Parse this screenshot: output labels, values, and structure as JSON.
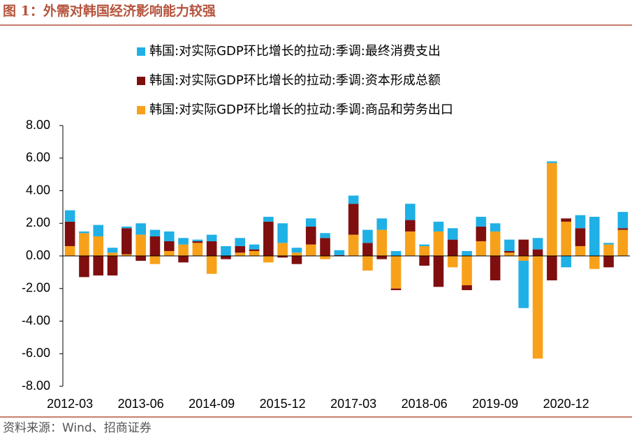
{
  "chart_data": {
    "type": "bar",
    "stacked": true,
    "title": "图 1：外需对韩国经济影响能力较强",
    "source": "资料来源：Wind、招商证券",
    "categories": [
      "2012-03",
      null,
      null,
      null,
      null,
      "2013-06",
      null,
      null,
      null,
      null,
      "2014-09",
      null,
      null,
      null,
      null,
      "2015-12",
      null,
      null,
      null,
      null,
      "2017-03",
      null,
      null,
      null,
      null,
      "2018-06",
      null,
      null,
      null,
      null,
      "2019-09",
      null,
      null,
      null,
      null,
      "2020-12",
      null,
      null,
      null,
      null
    ],
    "series": [
      {
        "name": "韩国:对实际GDP环比增长的拉动:季调:最终消费支出",
        "color": "#1fb0e6",
        "values": [
          0.7,
          0.1,
          0.7,
          0.3,
          0.1,
          0.7,
          0.4,
          0.6,
          0.4,
          0.1,
          0.4,
          0.6,
          0.5,
          0.3,
          0.3,
          1.2,
          0.3,
          0.5,
          0.3,
          0.3,
          0.5,
          0.8,
          0.7,
          0.3,
          1.0,
          0.1,
          0.6,
          0.7,
          0.3,
          0.6,
          0.5,
          0.7,
          -2.9,
          0.7,
          0.1,
          -0.7,
          0.8,
          2.4,
          0.1,
          1.0
        ]
      },
      {
        "name": "韩国:对实际GDP环比增长的拉动:季调:资本形成总额",
        "color": "#7f0f0f",
        "values": [
          1.5,
          -1.3,
          -1.2,
          -1.2,
          1.6,
          -0.3,
          1.2,
          0.6,
          -0.4,
          0.1,
          0.9,
          -0.2,
          0.4,
          0.1,
          2.1,
          -0.1,
          -0.5,
          1.1,
          1.1,
          0.05,
          1.9,
          0.8,
          -0.2,
          -0.1,
          0.7,
          -0.6,
          -1.9,
          1.0,
          -0.3,
          0.9,
          -1.5,
          0.1,
          1.0,
          0.4,
          -1.5,
          0.2,
          1.1,
          0.0,
          -0.7,
          0.1
        ]
      },
      {
        "name": "韩国:对实际GDP环比增长的拉动:季调:商品和劳务出口",
        "color": "#f7a11a",
        "values": [
          0.6,
          1.4,
          1.2,
          0.2,
          0.1,
          1.3,
          -0.5,
          0.3,
          0.7,
          0.8,
          -1.1,
          0.0,
          0.2,
          0.3,
          -0.4,
          0.8,
          0.2,
          0.7,
          -0.2,
          0.0,
          1.3,
          -0.9,
          1.6,
          -2.0,
          1.5,
          0.6,
          1.5,
          -0.7,
          -1.8,
          0.9,
          1.5,
          0.2,
          -0.3,
          -6.3,
          5.7,
          2.1,
          0.6,
          -0.8,
          0.7,
          1.6
        ]
      }
    ],
    "ylim": [
      -8,
      8
    ],
    "yticks": [
      {
        "value": -8,
        "label": "-8.00"
      },
      {
        "value": -6,
        "label": "-6.00"
      },
      {
        "value": -4,
        "label": "-4.00"
      },
      {
        "value": -2,
        "label": "-2.00"
      },
      {
        "value": 0,
        "label": "0.00"
      },
      {
        "value": 2,
        "label": "2.00"
      },
      {
        "value": 4,
        "label": "4.00"
      },
      {
        "value": 6,
        "label": "6.00"
      },
      {
        "value": 8,
        "label": "8.00"
      }
    ],
    "grid": false,
    "legend": "top"
  }
}
